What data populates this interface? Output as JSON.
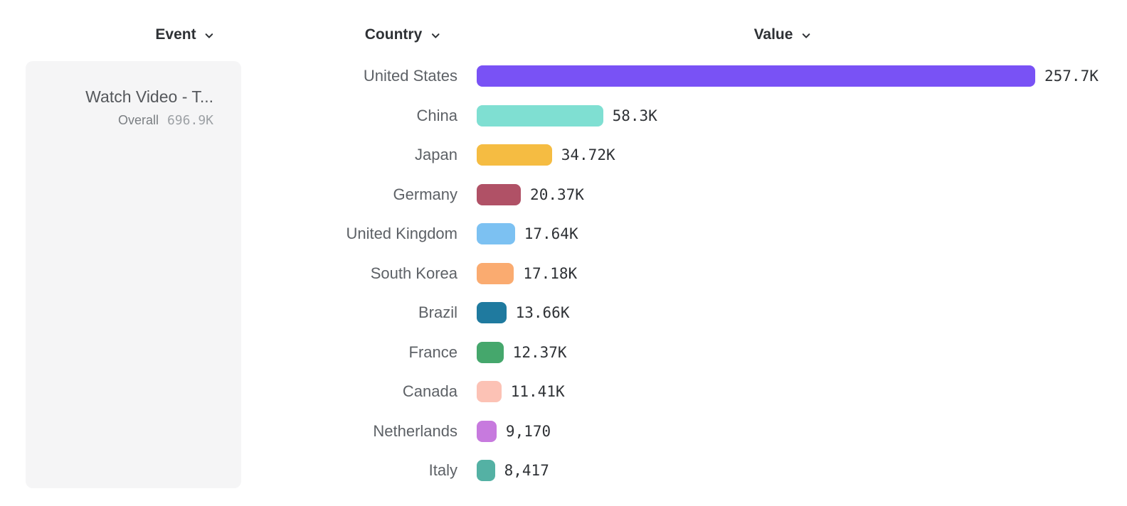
{
  "header": {
    "columns": {
      "event": {
        "label": "Event"
      },
      "country": {
        "label": "Country"
      },
      "value": {
        "label": "Value"
      }
    }
  },
  "event_panel": {
    "event_name": "Watch Video - T...",
    "metric_label": "Overall",
    "metric_value": "696.9K"
  },
  "chart_data": {
    "type": "bar",
    "orientation": "horizontal",
    "xlabel": "Value",
    "ylabel": "Country",
    "legend": "none",
    "grid": false,
    "max_value": 257700,
    "rows": [
      {
        "country": "United States",
        "value": 257700,
        "value_label": "257.7K",
        "color": "#7952F5"
      },
      {
        "country": "China",
        "value": 58300,
        "value_label": "58.3K",
        "color": "#7FDFD2"
      },
      {
        "country": "Japan",
        "value": 34720,
        "value_label": "34.72K",
        "color": "#F5BC42"
      },
      {
        "country": "Germany",
        "value": 20370,
        "value_label": "20.37K",
        "color": "#B05166"
      },
      {
        "country": "United Kingdom",
        "value": 17640,
        "value_label": "17.64K",
        "color": "#7CC1F2"
      },
      {
        "country": "South Korea",
        "value": 17180,
        "value_label": "17.18K",
        "color": "#FAAB70"
      },
      {
        "country": "Brazil",
        "value": 13660,
        "value_label": "13.66K",
        "color": "#1F7A9F"
      },
      {
        "country": "France",
        "value": 12370,
        "value_label": "12.37K",
        "color": "#45A76C"
      },
      {
        "country": "Canada",
        "value": 11410,
        "value_label": "11.41K",
        "color": "#FCC2B5"
      },
      {
        "country": "Netherlands",
        "value": 9170,
        "value_label": "9,170",
        "color": "#C77ADE"
      },
      {
        "country": "Italy",
        "value": 8417,
        "value_label": "8,417",
        "color": "#54B1A4"
      }
    ]
  }
}
